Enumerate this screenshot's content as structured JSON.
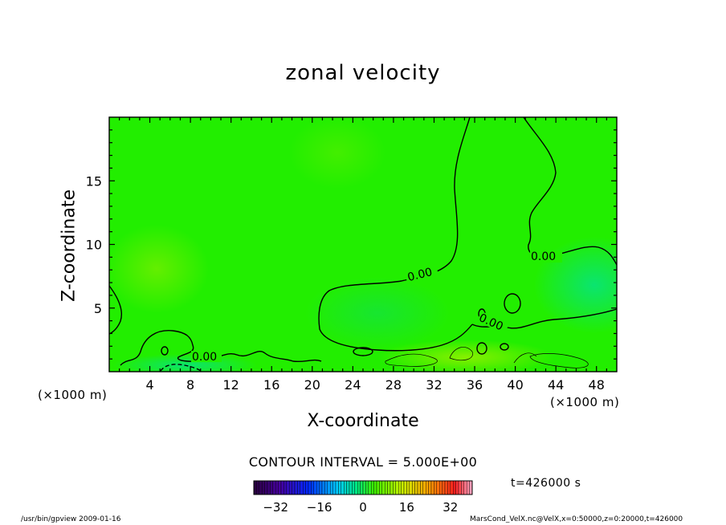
{
  "chart_data": {
    "type": "heatmap",
    "title": "zonal velocity",
    "xlabel": "X-coordinate",
    "ylabel": "Z-coordinate",
    "x_unit_label": "(×1000 m)",
    "xlim": [
      0,
      50
    ],
    "ylim": [
      0,
      20
    ],
    "x_ticks": [
      "4",
      "8",
      "12",
      "16",
      "20",
      "24",
      "28",
      "32",
      "36",
      "40",
      "44",
      "48"
    ],
    "y_ticks": [
      "5",
      "10",
      "15"
    ],
    "contour_interval_label": "CONTOUR INTERVAL = 5.000E+00",
    "contour_labels": [
      "0.00",
      "0.00",
      "0.00",
      "0.00"
    ],
    "colorbar": {
      "range": [
        -40,
        40
      ],
      "tick_labels": [
        "-32",
        "-16",
        "0",
        "16",
        "32"
      ]
    },
    "time_label": "t=426000 s",
    "colors": {
      "field_background": "#22ee00",
      "positive_tint": "#66ee00",
      "negative_tint": "#00dd88"
    }
  },
  "footer": {
    "program": "/usr/bin/gpview   2009-01-16",
    "source": "MarsCond_VelX.nc@VelX,x=0:50000,z=0:20000,t=426000"
  }
}
